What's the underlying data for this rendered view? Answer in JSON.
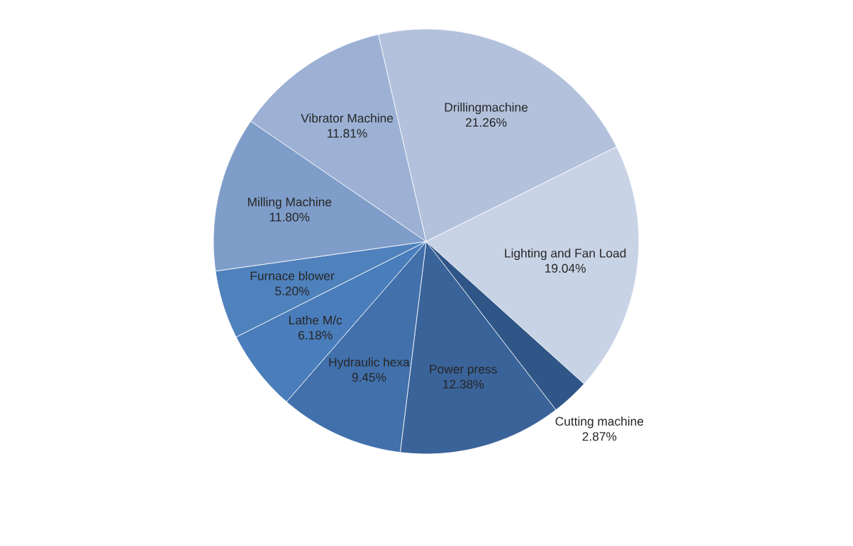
{
  "chart_data": {
    "type": "pie",
    "categories": [
      "Drillingmachine",
      "Lighting and Fan Load",
      "Cutting machine",
      "Power press",
      "Hydraulic hexa",
      "Lathe M/c",
      "Furnace blower",
      "Milling Machine",
      "Vibrator Machine"
    ],
    "values": [
      21.26,
      19.04,
      2.87,
      12.38,
      9.45,
      6.18,
      5.2,
      11.8,
      11.81
    ],
    "value_labels": [
      "21.26%",
      "19.04%",
      "2.87%",
      "12.38%",
      "9.45%",
      "6.18%",
      "5.20%",
      "11.80%",
      "11.81%"
    ],
    "colors": [
      "#b3c1dc",
      "#c9d3e6",
      "#2f5686",
      "#3a6399",
      "#4170ab",
      "#4a7dbb",
      "#4f81bd",
      "#7f9dc9",
      "#9cb1d4"
    ]
  }
}
